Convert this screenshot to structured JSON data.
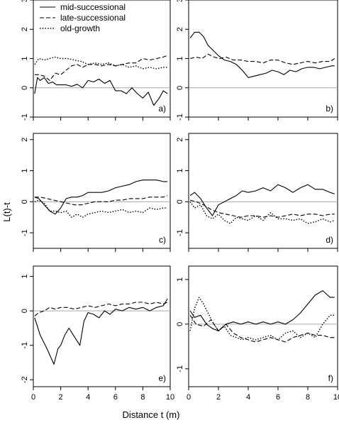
{
  "figure": {
    "ylabel": "L(t)-t",
    "xlabel": "Distance t (m)",
    "legend": {
      "placement": "top-left of panel a",
      "entries": [
        {
          "label": "mid-successional",
          "linestyle": "solid"
        },
        {
          "label": "late-successional",
          "linestyle": "dashed"
        },
        {
          "label": "old-growth",
          "linestyle": "dotted"
        }
      ]
    }
  },
  "chart_data": [
    {
      "type": "line",
      "panel_label": "a)",
      "xlim": [
        0,
        10
      ],
      "ylim": [
        -1,
        3
      ],
      "y_ticks": [
        -1,
        0,
        1,
        2,
        3
      ],
      "x_ticks": [
        0,
        2,
        4,
        6,
        8,
        10
      ],
      "reference_line": 0,
      "series": [
        {
          "name": "mid-successional",
          "style": "solid",
          "x": [
            0.1,
            0.3,
            0.5,
            0.8,
            1.1,
            1.4,
            1.7,
            2.0,
            2.4,
            2.8,
            3.2,
            3.6,
            4.0,
            4.4,
            4.8,
            5.2,
            5.6,
            6.0,
            6.4,
            6.8,
            7.2,
            7.6,
            8.0,
            8.4,
            8.8,
            9.2,
            9.5,
            9.8
          ],
          "y": [
            -0.2,
            0.35,
            0.25,
            0.35,
            0.15,
            0.2,
            0.1,
            0.1,
            0.1,
            0.05,
            0.12,
            0.0,
            0.25,
            0.2,
            0.3,
            0.15,
            0.25,
            -0.1,
            -0.1,
            -0.2,
            0.0,
            -0.2,
            -0.35,
            -0.15,
            -0.6,
            -0.35,
            -0.1,
            -0.2
          ]
        },
        {
          "name": "late-successional",
          "style": "dashed",
          "x": [
            0.1,
            0.4,
            0.8,
            1.2,
            1.6,
            2.0,
            2.4,
            2.8,
            3.2,
            3.6,
            4.0,
            4.5,
            5.0,
            5.5,
            6.0,
            6.5,
            7.0,
            7.5,
            8.0,
            8.5,
            9.0,
            9.5,
            9.8
          ],
          "y": [
            0.45,
            0.45,
            0.4,
            0.25,
            0.5,
            0.45,
            0.6,
            0.75,
            0.8,
            0.7,
            0.8,
            0.8,
            0.75,
            0.8,
            0.75,
            0.8,
            0.85,
            0.85,
            1.0,
            0.95,
            1.0,
            1.05,
            1.1
          ]
        },
        {
          "name": "old-growth",
          "style": "dotted",
          "x": [
            0.1,
            0.4,
            0.8,
            1.2,
            1.6,
            2.0,
            2.5,
            3.0,
            3.5,
            4.0,
            4.5,
            5.0,
            5.5,
            6.0,
            6.5,
            7.0,
            7.5,
            8.0,
            8.5,
            9.0,
            9.5,
            9.8
          ],
          "y": [
            0.8,
            1.0,
            0.95,
            1.0,
            1.05,
            1.0,
            1.0,
            0.95,
            0.9,
            0.8,
            0.85,
            0.8,
            0.85,
            0.75,
            0.8,
            0.7,
            0.75,
            0.65,
            0.7,
            0.65,
            0.7,
            0.7
          ]
        }
      ]
    },
    {
      "type": "line",
      "panel_label": "b)",
      "xlim": [
        0,
        10
      ],
      "ylim": [
        -1,
        3
      ],
      "y_ticks": [
        -1,
        0,
        1,
        2,
        3
      ],
      "x_ticks": [
        0,
        2,
        4,
        6,
        8,
        10
      ],
      "reference_line": 0,
      "series": [
        {
          "name": "mid-successional",
          "style": "solid",
          "x": [
            0.1,
            0.4,
            0.7,
            1.0,
            1.3,
            1.6,
            2.0,
            2.4,
            2.8,
            3.2,
            3.6,
            4.0,
            4.4,
            4.8,
            5.2,
            5.6,
            6.0,
            6.4,
            6.8,
            7.2,
            7.6,
            8.0,
            8.4,
            8.8,
            9.2,
            9.6,
            9.8
          ],
          "y": [
            1.7,
            1.9,
            1.9,
            1.75,
            1.45,
            1.3,
            1.1,
            0.95,
            0.9,
            0.8,
            0.6,
            0.35,
            0.4,
            0.45,
            0.5,
            0.6,
            0.55,
            0.45,
            0.6,
            0.55,
            0.65,
            0.7,
            0.7,
            0.65,
            0.7,
            0.75,
            0.75
          ]
        },
        {
          "name": "late-successional",
          "style": "dashed",
          "x": [
            0.1,
            0.5,
            0.9,
            1.3,
            1.7,
            2.1,
            2.5,
            3.0,
            3.5,
            4.0,
            4.5,
            5.0,
            5.5,
            6.0,
            6.5,
            7.0,
            7.5,
            8.0,
            8.5,
            9.0,
            9.5,
            9.8
          ],
          "y": [
            1.0,
            1.05,
            1.0,
            1.15,
            1.05,
            1.0,
            1.05,
            0.95,
            0.95,
            0.9,
            0.9,
            0.85,
            0.95,
            0.95,
            0.85,
            0.8,
            0.85,
            0.9,
            0.85,
            0.9,
            0.9,
            1.0
          ]
        }
      ]
    },
    {
      "type": "line",
      "panel_label": "c)",
      "xlim": [
        0,
        10
      ],
      "ylim": [
        -1.5,
        2.2
      ],
      "y_ticks": [
        -1,
        0,
        1,
        2
      ],
      "x_ticks": [
        0,
        2,
        4,
        6,
        8,
        10
      ],
      "reference_line": 0,
      "series": [
        {
          "name": "mid-successional",
          "style": "solid",
          "x": [
            0.1,
            0.4,
            0.8,
            1.2,
            1.6,
            2.0,
            2.4,
            2.8,
            3.2,
            3.6,
            4.0,
            4.5,
            5.0,
            5.5,
            6.0,
            6.5,
            7.0,
            7.5,
            8.0,
            8.5,
            9.0,
            9.5,
            9.8
          ],
          "y": [
            0.15,
            0.1,
            -0.1,
            -0.3,
            -0.4,
            -0.2,
            0.1,
            0.15,
            0.15,
            0.2,
            0.3,
            0.3,
            0.3,
            0.35,
            0.45,
            0.5,
            0.55,
            0.65,
            0.7,
            0.7,
            0.7,
            0.65,
            0.65
          ]
        },
        {
          "name": "late-successional",
          "style": "dashed",
          "x": [
            0.1,
            0.5,
            1.0,
            1.5,
            2.0,
            2.5,
            3.0,
            3.5,
            4.0,
            4.5,
            5.0,
            5.5,
            6.0,
            6.5,
            7.0,
            7.5,
            8.0,
            8.5,
            9.0,
            9.5,
            9.8
          ],
          "y": [
            0.15,
            0.15,
            0.1,
            0.05,
            0.0,
            -0.05,
            -0.1,
            -0.1,
            -0.05,
            0.0,
            0.0,
            0.0,
            0.05,
            0.05,
            0.1,
            0.1,
            0.1,
            0.15,
            0.15,
            0.15,
            0.2
          ]
        },
        {
          "name": "old-growth",
          "style": "dotted",
          "x": [
            0.1,
            0.4,
            0.8,
            1.2,
            1.6,
            2.0,
            2.4,
            2.8,
            3.2,
            3.6,
            4.0,
            4.5,
            5.0,
            5.5,
            6.0,
            6.5,
            7.0,
            7.5,
            8.0,
            8.5,
            9.0,
            9.5,
            9.8
          ],
          "y": [
            0.0,
            0.05,
            -0.05,
            -0.3,
            -0.3,
            -0.35,
            -0.3,
            -0.5,
            -0.4,
            -0.5,
            -0.4,
            -0.35,
            -0.3,
            -0.35,
            -0.3,
            -0.25,
            -0.35,
            -0.3,
            -0.35,
            -0.2,
            -0.25,
            -0.2,
            -0.2
          ]
        }
      ]
    },
    {
      "type": "line",
      "panel_label": "d)",
      "xlim": [
        0,
        10
      ],
      "ylim": [
        -1.5,
        2.2
      ],
      "y_ticks": [
        -1,
        0,
        1,
        2
      ],
      "x_ticks": [
        0,
        2,
        4,
        6,
        8,
        10
      ],
      "reference_line": 0,
      "series": [
        {
          "name": "mid-successional",
          "style": "solid",
          "x": [
            0.1,
            0.4,
            0.8,
            1.2,
            1.6,
            2.0,
            2.4,
            2.8,
            3.2,
            3.6,
            4.0,
            4.5,
            5.0,
            5.5,
            6.0,
            6.5,
            7.0,
            7.5,
            8.0,
            8.5,
            9.0,
            9.5,
            9.8
          ],
          "y": [
            0.2,
            0.3,
            0.1,
            -0.2,
            -0.45,
            -0.1,
            0.0,
            0.1,
            0.2,
            0.35,
            0.3,
            0.35,
            0.45,
            0.35,
            0.55,
            0.45,
            0.3,
            0.45,
            0.55,
            0.4,
            0.4,
            0.3,
            0.25
          ]
        },
        {
          "name": "late-successional",
          "style": "dashed",
          "x": [
            0.1,
            0.5,
            1.0,
            1.5,
            2.0,
            2.5,
            3.0,
            3.5,
            4.0,
            4.5,
            5.0,
            5.5,
            6.0,
            6.5,
            7.0,
            7.5,
            8.0,
            8.5,
            9.0,
            9.5,
            9.8
          ],
          "y": [
            0.05,
            0.0,
            -0.1,
            -0.25,
            -0.35,
            -0.4,
            -0.45,
            -0.5,
            -0.45,
            -0.45,
            -0.5,
            -0.45,
            -0.5,
            -0.45,
            -0.4,
            -0.45,
            -0.4,
            -0.4,
            -0.45,
            -0.4,
            -0.4
          ]
        },
        {
          "name": "old-growth",
          "style": "dotted",
          "x": [
            0.1,
            0.4,
            0.8,
            1.2,
            1.6,
            2.0,
            2.4,
            2.8,
            3.2,
            3.6,
            4.0,
            4.5,
            5.0,
            5.5,
            6.0,
            6.5,
            7.0,
            7.5,
            8.0,
            8.5,
            9.0,
            9.5,
            9.8
          ],
          "y": [
            0.0,
            -0.2,
            -0.1,
            -0.45,
            -0.55,
            -0.4,
            -0.6,
            -0.7,
            -0.5,
            -0.55,
            -0.6,
            -0.45,
            -0.6,
            -0.35,
            -0.55,
            -0.55,
            -0.6,
            -0.55,
            -0.7,
            -0.65,
            -0.55,
            -0.65,
            -0.6
          ]
        }
      ]
    },
    {
      "type": "line",
      "panel_label": "e)",
      "xlim": [
        0,
        10
      ],
      "ylim": [
        -2.2,
        1.3
      ],
      "y_ticks": [
        -2,
        -1,
        0,
        1
      ],
      "x_ticks": [
        0,
        2,
        4,
        6,
        8,
        10
      ],
      "reference_line": 0,
      "series": [
        {
          "name": "mid-successional",
          "style": "solid",
          "x": [
            0.1,
            0.5,
            1.0,
            1.5,
            1.8,
            2.0,
            2.3,
            2.6,
            3.0,
            3.4,
            3.7,
            4.0,
            4.4,
            4.8,
            5.2,
            5.6,
            6.0,
            6.5,
            7.0,
            7.5,
            8.0,
            8.5,
            9.0,
            9.5,
            9.8
          ],
          "y": [
            -0.2,
            -0.7,
            -1.1,
            -1.55,
            -1.1,
            -1.0,
            -0.7,
            -0.5,
            -0.75,
            -1.0,
            -0.3,
            -0.05,
            -0.1,
            -0.2,
            0.0,
            -0.1,
            0.05,
            0.0,
            0.1,
            0.05,
            0.1,
            0.0,
            0.1,
            0.15,
            0.35
          ]
        },
        {
          "name": "late-successional",
          "style": "dashed",
          "x": [
            0.1,
            0.4,
            0.8,
            1.2,
            1.6,
            2.0,
            2.5,
            3.0,
            3.5,
            4.0,
            4.5,
            5.0,
            5.5,
            6.0,
            6.5,
            7.0,
            7.5,
            8.0,
            8.5,
            9.0,
            9.5,
            9.8
          ],
          "y": [
            -0.15,
            -0.05,
            0.0,
            0.1,
            0.05,
            0.1,
            0.1,
            0.05,
            0.1,
            0.15,
            0.1,
            0.15,
            0.2,
            0.15,
            0.2,
            0.2,
            0.25,
            0.25,
            0.2,
            0.25,
            0.2,
            0.25
          ]
        }
      ]
    },
    {
      "type": "line",
      "panel_label": "f)",
      "xlim": [
        0,
        10
      ],
      "ylim": [
        -1.4,
        1.3
      ],
      "y_ticks": [
        -1,
        0,
        1
      ],
      "x_ticks": [
        0,
        2,
        4,
        6,
        8,
        10
      ],
      "reference_line": 0,
      "series": [
        {
          "name": "mid-successional",
          "style": "solid",
          "x": [
            0.1,
            0.4,
            0.8,
            1.2,
            1.6,
            2.0,
            2.5,
            3.0,
            3.5,
            4.0,
            4.5,
            5.0,
            5.5,
            6.0,
            6.5,
            7.0,
            7.5,
            8.0,
            8.5,
            9.0,
            9.5,
            9.8
          ],
          "y": [
            0.3,
            0.15,
            0.2,
            0.0,
            -0.1,
            -0.15,
            0.0,
            0.05,
            0.0,
            0.05,
            0.0,
            0.05,
            0.0,
            0.05,
            0.0,
            0.1,
            0.25,
            0.45,
            0.65,
            0.75,
            0.6,
            0.6
          ]
        },
        {
          "name": "late-successional",
          "style": "dashed",
          "x": [
            0.1,
            0.5,
            1.0,
            1.5,
            2.0,
            2.5,
            3.0,
            3.5,
            4.0,
            4.5,
            5.0,
            5.5,
            6.0,
            6.5,
            7.0,
            7.5,
            8.0,
            8.5,
            9.0,
            9.5,
            9.8
          ],
          "y": [
            0.2,
            0.0,
            -0.05,
            0.1,
            -0.15,
            0.0,
            -0.2,
            -0.3,
            -0.35,
            -0.4,
            -0.35,
            -0.3,
            -0.35,
            -0.4,
            -0.3,
            -0.25,
            -0.2,
            -0.25,
            -0.25,
            -0.3,
            -0.3
          ]
        },
        {
          "name": "old-growth",
          "style": "dotted",
          "x": [
            0.1,
            0.4,
            0.7,
            1.0,
            1.3,
            1.6,
            2.0,
            2.4,
            2.8,
            3.2,
            3.6,
            4.0,
            4.5,
            5.0,
            5.5,
            6.0,
            6.5,
            7.0,
            7.5,
            8.0,
            8.5,
            9.0,
            9.5,
            9.8
          ],
          "y": [
            -0.15,
            0.35,
            0.6,
            0.45,
            0.25,
            0.05,
            -0.15,
            -0.05,
            -0.25,
            -0.3,
            -0.35,
            -0.3,
            -0.35,
            -0.3,
            -0.25,
            -0.35,
            -0.2,
            -0.15,
            -0.3,
            -0.2,
            -0.3,
            0.0,
            0.2,
            0.2
          ]
        }
      ]
    }
  ]
}
